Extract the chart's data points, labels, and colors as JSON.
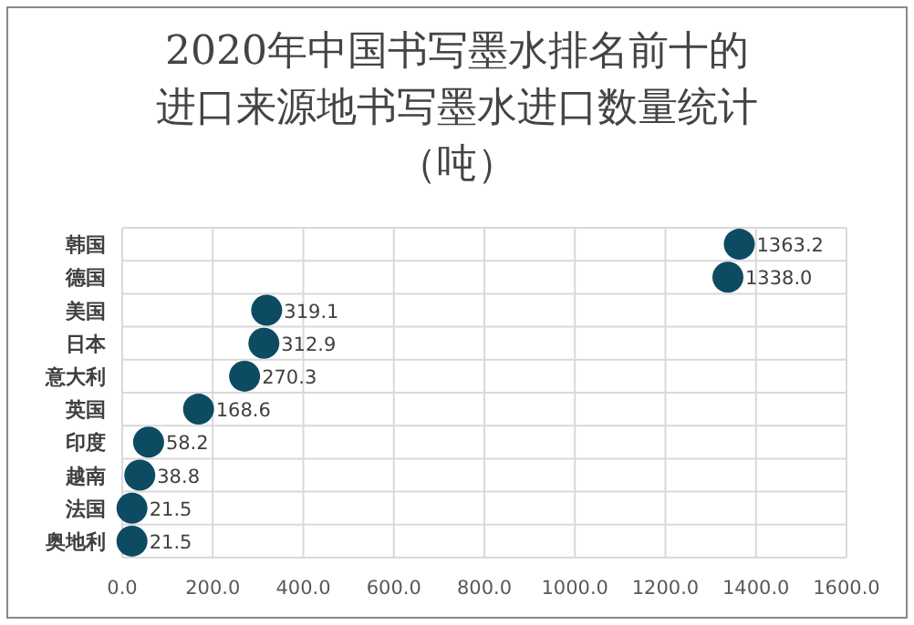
{
  "chart_data": {
    "type": "scatter",
    "title": "2020年中国书写墨水排名前十的进口来源地书写墨水进口数量统计（吨）",
    "orientation": "horizontal",
    "categories": [
      "韩国",
      "德国",
      "美国",
      "日本",
      "意大利",
      "英国",
      "印度",
      "越南",
      "法国",
      "奥地利"
    ],
    "values": [
      1363.2,
      1338.0,
      319.1,
      312.9,
      270.3,
      168.6,
      58.2,
      38.8,
      21.5,
      21.5
    ],
    "value_labels": [
      "1363.2",
      "1338.0",
      "319.1",
      "312.9",
      "270.3",
      "168.6",
      "58.2",
      "38.8",
      "21.5",
      "21.5"
    ],
    "color": "#0d4b63",
    "marker": "circle",
    "grid": true,
    "xlim": [
      0,
      1600
    ],
    "xticks": [
      {
        "value": 0,
        "label": "0.0"
      },
      {
        "value": 200,
        "label": "200.0"
      },
      {
        "value": 400,
        "label": "400.0"
      },
      {
        "value": 600,
        "label": "600.0"
      },
      {
        "value": 800,
        "label": "800.0"
      },
      {
        "value": 1000,
        "label": "1000.0"
      },
      {
        "value": 1200,
        "label": "1200.0"
      },
      {
        "value": 1400,
        "label": "1400.0"
      },
      {
        "value": 1600,
        "label": "1600.0"
      }
    ]
  }
}
